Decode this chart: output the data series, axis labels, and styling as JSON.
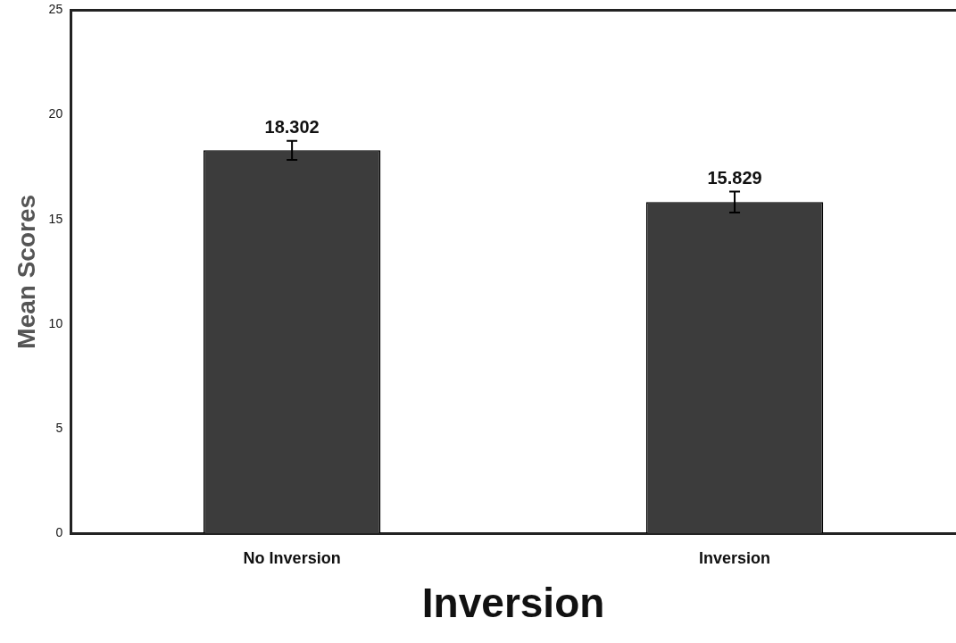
{
  "chart_data": {
    "type": "bar",
    "xlabel": "Inversion",
    "ylabel": "Mean Scores",
    "categories": [
      "No Inversion",
      "Inversion"
    ],
    "values": [
      18.302,
      15.829
    ],
    "errors": [
      0.45,
      0.5
    ],
    "color": "#3c3c3c",
    "ylim": [
      0,
      25
    ],
    "yticks": [
      0,
      5,
      10,
      15,
      20,
      25
    ],
    "grid": false,
    "data_labels": true
  }
}
